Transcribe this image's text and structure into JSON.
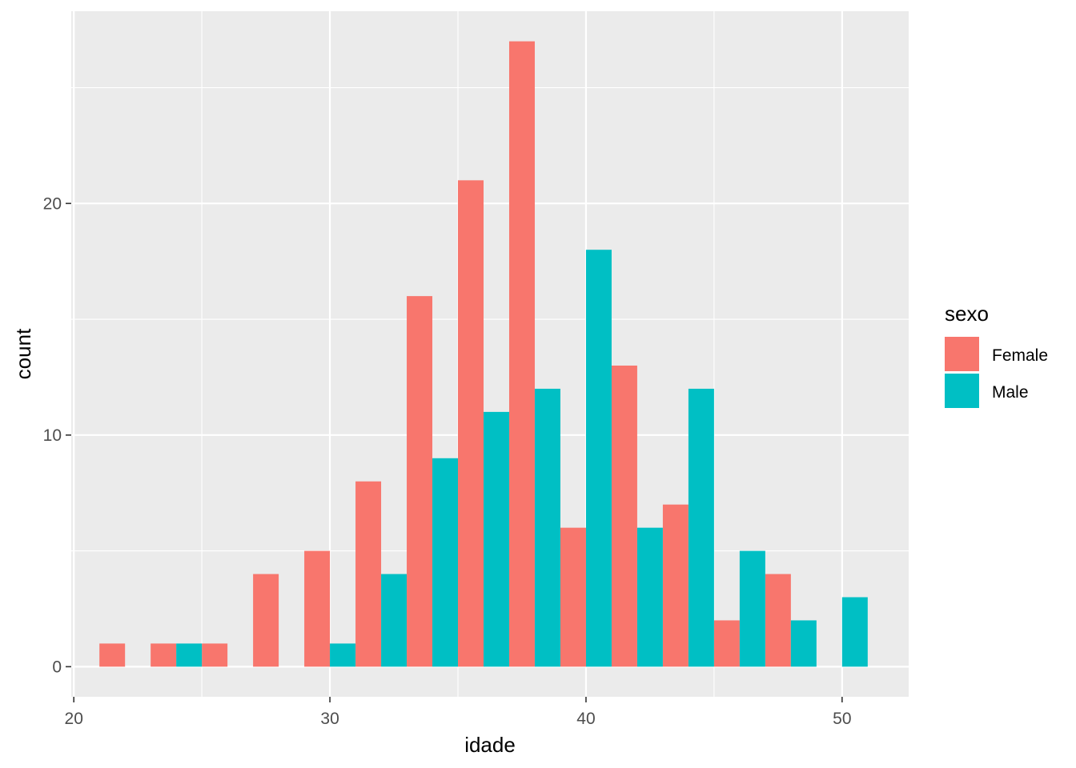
{
  "chart_data": {
    "type": "bar",
    "xlabel": "idade",
    "ylabel": "count",
    "xlim": [
      19.9,
      52.6
    ],
    "ylim": [
      -1.3,
      28.3
    ],
    "x_ticks": [
      20,
      30,
      40,
      50
    ],
    "y_ticks": [
      0,
      10,
      20
    ],
    "grid": true,
    "legend": {
      "title": "sexo",
      "position": "right",
      "entries": [
        "Female",
        "Male"
      ]
    },
    "colors": {
      "Female": "#F8766D",
      "Male": "#00BFC4",
      "panel": "#EBEBEB",
      "grid": "#FFFFFF"
    },
    "bin_centers": [
      22,
      24,
      26,
      28,
      30,
      32,
      34,
      36,
      38,
      40,
      42,
      44,
      46,
      48,
      50
    ],
    "bin_width": 2,
    "series": [
      {
        "name": "Female",
        "values": [
          1,
          1,
          1,
          4,
          5,
          8,
          16,
          21,
          27,
          6,
          13,
          7,
          2,
          4,
          0
        ]
      },
      {
        "name": "Male",
        "values": [
          0,
          1,
          0,
          0,
          1,
          4,
          9,
          11,
          12,
          18,
          6,
          12,
          5,
          2,
          3
        ]
      }
    ]
  }
}
